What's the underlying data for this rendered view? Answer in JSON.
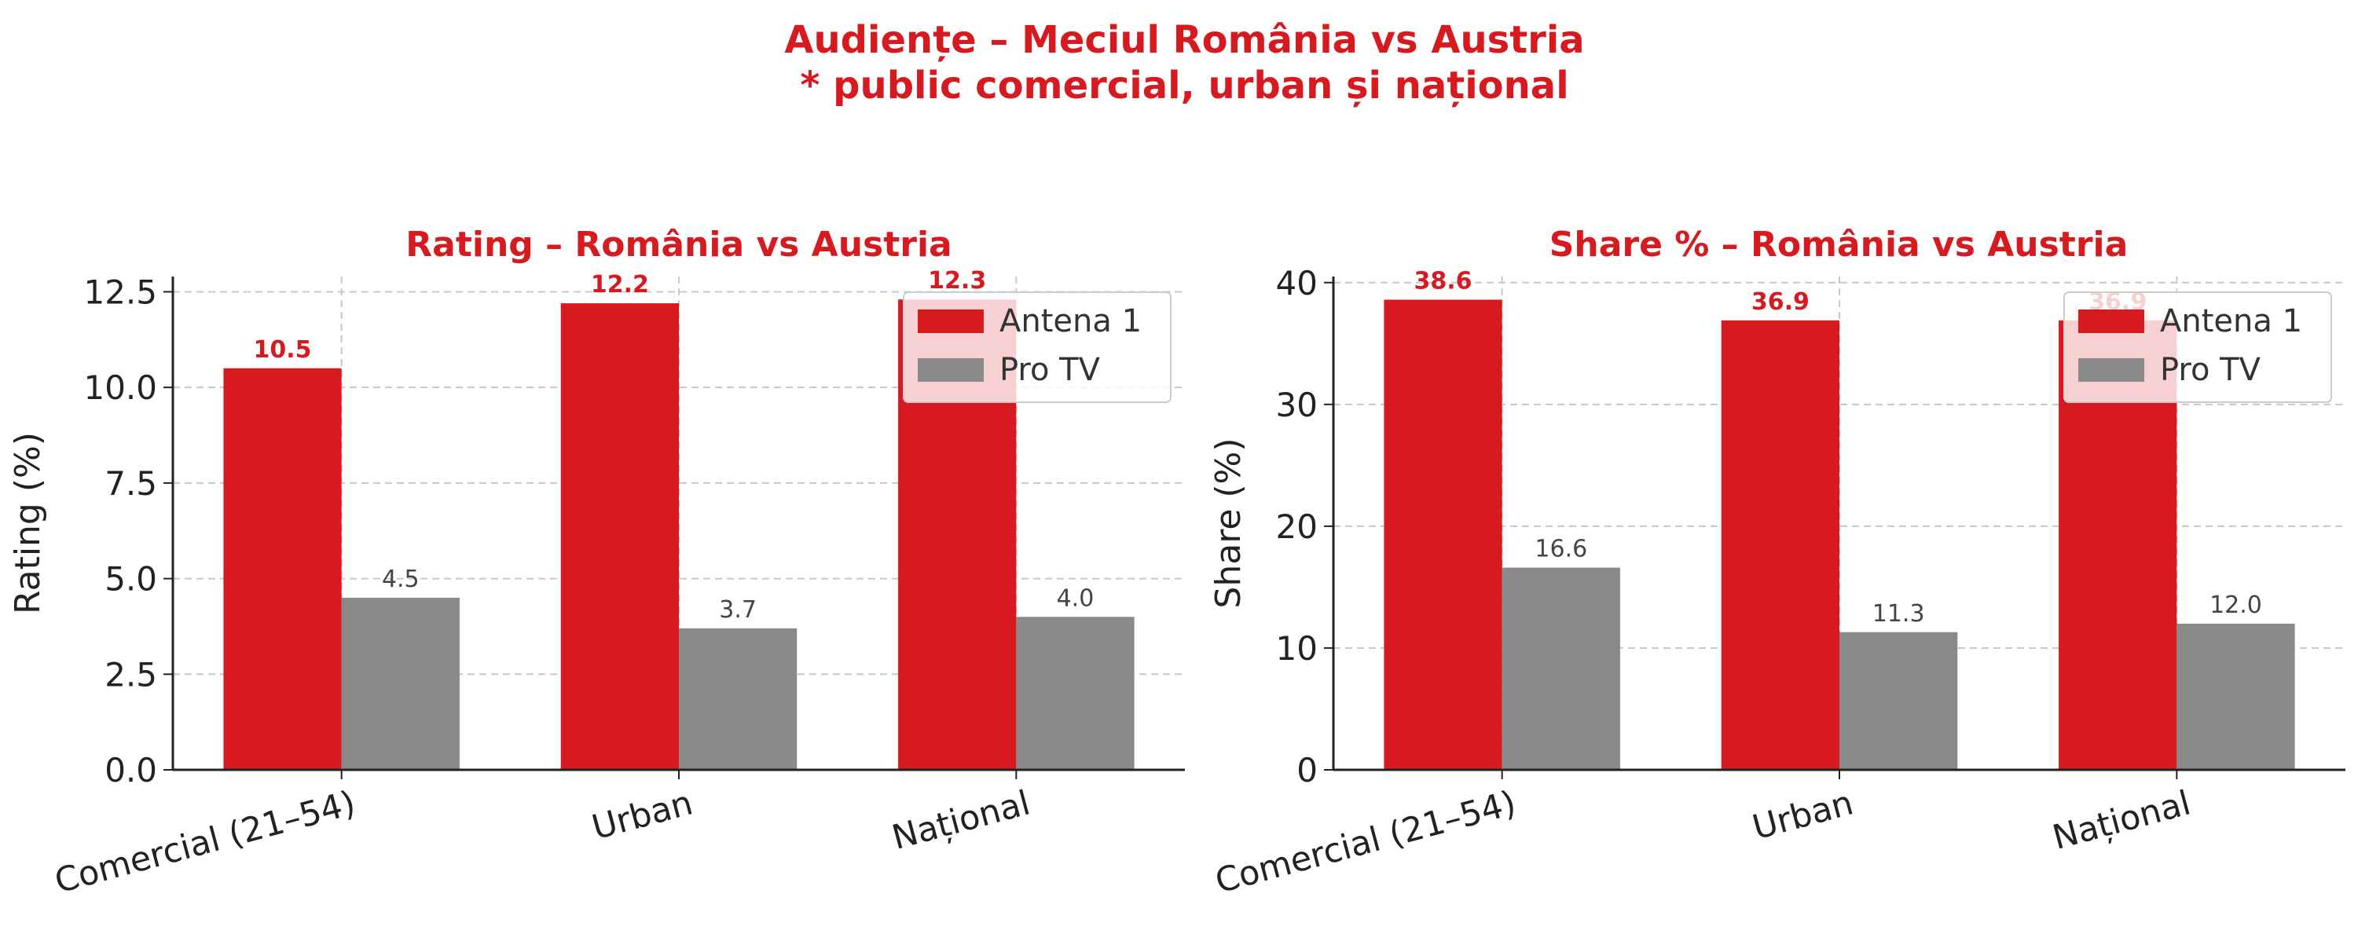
{
  "title": "Audiențe – Meciul România vs Austria",
  "subtitle": "* public comercial, urban și național",
  "colors": {
    "antena": "#d71920",
    "protv": "#898989",
    "title": "#d71920",
    "grid": "#c8c8c8"
  },
  "chart_data": [
    {
      "type": "bar",
      "title": "Rating – România vs Austria",
      "xlabel": "",
      "ylabel": "Rating (%)",
      "categories": [
        "Comercial (21–54)",
        "Urban",
        "Național"
      ],
      "series": [
        {
          "name": "Antena 1",
          "values": [
            10.5,
            12.2,
            12.3
          ],
          "labels": [
            "10.5",
            "12.2",
            "12.3"
          ]
        },
        {
          "name": "Pro TV",
          "values": [
            4.5,
            3.7,
            4.0
          ],
          "labels": [
            "4.5",
            "3.7",
            "4.0"
          ]
        }
      ],
      "ylim": [
        0,
        12.9
      ],
      "yticks": [
        0,
        2.5,
        5,
        7.5,
        10,
        12.5
      ],
      "ytick_labels": [
        "0.0",
        "2.5",
        "5.0",
        "7.5",
        "10.0",
        "12.5"
      ],
      "grid": true,
      "legend": "top-right"
    },
    {
      "type": "bar",
      "title": "Share % – România vs Austria",
      "xlabel": "",
      "ylabel": "Share (%)",
      "categories": [
        "Comercial (21–54)",
        "Urban",
        "Național"
      ],
      "series": [
        {
          "name": "Antena 1",
          "values": [
            38.6,
            36.9,
            36.9
          ],
          "labels": [
            "38.6",
            "36.9",
            "36.9"
          ]
        },
        {
          "name": "Pro TV",
          "values": [
            16.6,
            11.3,
            12.0
          ],
          "labels": [
            "16.6",
            "11.3",
            "12.0"
          ]
        }
      ],
      "ylim": [
        0,
        40.5
      ],
      "yticks": [
        0,
        10,
        20,
        30,
        40
      ],
      "ytick_labels": [
        "0",
        "10",
        "20",
        "30",
        "40"
      ],
      "grid": true,
      "legend": "top-right"
    }
  ]
}
